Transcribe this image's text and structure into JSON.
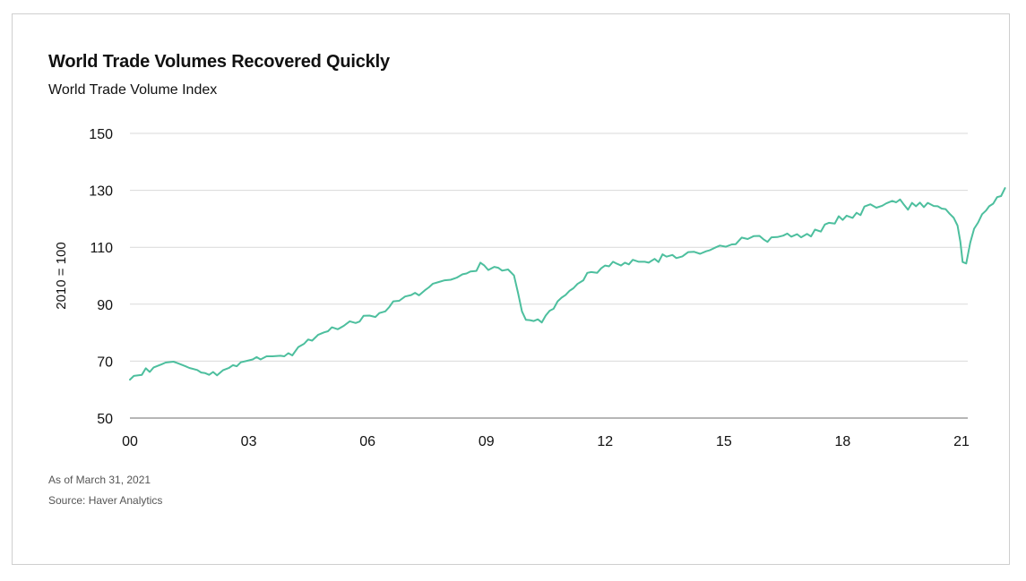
{
  "chart_data": {
    "type": "line",
    "title": "World Trade Volumes Recovered Quickly",
    "subtitle": "World Trade Volume Index",
    "xlabel": "",
    "ylabel": "2010 = 100",
    "xlim": [
      2000,
      2021.2
    ],
    "ylim": [
      50,
      150
    ],
    "yticks": [
      50,
      70,
      90,
      110,
      130,
      150
    ],
    "xticks": [
      {
        "value": 2000,
        "label": "00"
      },
      {
        "value": 2003,
        "label": "03"
      },
      {
        "value": 2006,
        "label": "06"
      },
      {
        "value": 2009,
        "label": "09"
      },
      {
        "value": 2012,
        "label": "12"
      },
      {
        "value": 2015,
        "label": "15"
      },
      {
        "value": 2018,
        "label": "18"
      },
      {
        "value": 2021,
        "label": "21"
      }
    ],
    "grid": "horizontal",
    "line_color": "#4dbf9e",
    "series": [
      {
        "values": [
          [
            2000.0,
            63.5
          ],
          [
            2000.1,
            64.8
          ],
          [
            2000.3,
            65.2
          ],
          [
            2000.4,
            67.5
          ],
          [
            2000.5,
            66.2
          ],
          [
            2000.6,
            67.8
          ],
          [
            2000.8,
            68.9
          ],
          [
            2000.9,
            69.5
          ],
          [
            2001.1,
            69.8
          ],
          [
            2001.2,
            69.3
          ],
          [
            2001.4,
            68.2
          ],
          [
            2001.5,
            67.6
          ],
          [
            2001.7,
            66.9
          ],
          [
            2001.8,
            66.0
          ],
          [
            2001.9,
            65.8
          ],
          [
            2002.0,
            65.2
          ],
          [
            2002.1,
            66.2
          ],
          [
            2002.2,
            65.0
          ],
          [
            2002.35,
            66.8
          ],
          [
            2002.5,
            67.6
          ],
          [
            2002.6,
            68.6
          ],
          [
            2002.7,
            68.2
          ],
          [
            2002.8,
            69.6
          ],
          [
            2002.95,
            70.1
          ],
          [
            2003.1,
            70.6
          ],
          [
            2003.2,
            71.4
          ],
          [
            2003.3,
            70.6
          ],
          [
            2003.45,
            71.7
          ],
          [
            2003.6,
            71.7
          ],
          [
            2003.8,
            71.9
          ],
          [
            2003.9,
            71.7
          ],
          [
            2004.0,
            72.8
          ],
          [
            2004.1,
            72.0
          ],
          [
            2004.25,
            74.9
          ],
          [
            2004.4,
            76.1
          ],
          [
            2004.5,
            77.6
          ],
          [
            2004.6,
            77.2
          ],
          [
            2004.75,
            79.2
          ],
          [
            2004.9,
            80.1
          ],
          [
            2005.0,
            80.5
          ],
          [
            2005.1,
            81.9
          ],
          [
            2005.25,
            81.2
          ],
          [
            2005.4,
            82.4
          ],
          [
            2005.55,
            84.0
          ],
          [
            2005.7,
            83.4
          ],
          [
            2005.8,
            83.9
          ],
          [
            2005.9,
            85.9
          ],
          [
            2006.05,
            86.0
          ],
          [
            2006.2,
            85.5
          ],
          [
            2006.3,
            86.9
          ],
          [
            2006.45,
            87.5
          ],
          [
            2006.55,
            89.0
          ],
          [
            2006.65,
            91.0
          ],
          [
            2006.8,
            91.2
          ],
          [
            2006.95,
            92.7
          ],
          [
            2007.1,
            93.2
          ],
          [
            2007.2,
            94.0
          ],
          [
            2007.3,
            93.1
          ],
          [
            2007.45,
            94.9
          ],
          [
            2007.55,
            95.9
          ],
          [
            2007.65,
            97.2
          ],
          [
            2007.8,
            97.8
          ],
          [
            2007.95,
            98.4
          ],
          [
            2008.1,
            98.6
          ],
          [
            2008.25,
            99.3
          ],
          [
            2008.4,
            100.5
          ],
          [
            2008.5,
            100.8
          ],
          [
            2008.6,
            101.5
          ],
          [
            2008.75,
            101.7
          ],
          [
            2008.85,
            104.6
          ],
          [
            2008.95,
            103.6
          ],
          [
            2009.05,
            102.0
          ],
          [
            2009.2,
            103.1
          ],
          [
            2009.3,
            102.8
          ],
          [
            2009.4,
            101.8
          ],
          [
            2009.55,
            102.2
          ],
          [
            2009.7,
            100.1
          ],
          [
            2009.8,
            94.0
          ],
          [
            2009.9,
            87.5
          ],
          [
            2010.0,
            84.5
          ],
          [
            2010.1,
            84.4
          ],
          [
            2010.2,
            84.1
          ],
          [
            2010.3,
            84.7
          ],
          [
            2010.4,
            83.6
          ],
          [
            2010.5,
            86.0
          ],
          [
            2010.6,
            87.7
          ],
          [
            2010.7,
            88.4
          ],
          [
            2010.8,
            91.0
          ],
          [
            2010.9,
            92.3
          ],
          [
            2011.0,
            93.2
          ],
          [
            2011.1,
            94.7
          ],
          [
            2011.2,
            95.6
          ],
          [
            2011.3,
            97.1
          ],
          [
            2011.45,
            98.4
          ],
          [
            2011.55,
            101.0
          ],
          [
            2011.65,
            101.3
          ],
          [
            2011.8,
            101.0
          ],
          [
            2011.9,
            102.6
          ],
          [
            2012.0,
            103.6
          ],
          [
            2012.1,
            103.3
          ],
          [
            2012.2,
            104.9
          ],
          [
            2012.3,
            104.2
          ],
          [
            2012.4,
            103.6
          ],
          [
            2012.5,
            104.6
          ],
          [
            2012.6,
            104.0
          ],
          [
            2012.7,
            105.6
          ],
          [
            2012.85,
            104.9
          ],
          [
            2013.0,
            104.9
          ],
          [
            2013.1,
            104.6
          ],
          [
            2013.25,
            105.9
          ],
          [
            2013.35,
            104.8
          ],
          [
            2013.45,
            107.5
          ],
          [
            2013.55,
            106.7
          ],
          [
            2013.7,
            107.3
          ],
          [
            2013.8,
            106.2
          ],
          [
            2013.95,
            106.8
          ],
          [
            2014.1,
            108.3
          ],
          [
            2014.25,
            108.4
          ],
          [
            2014.4,
            107.7
          ],
          [
            2014.55,
            108.6
          ],
          [
            2014.65,
            109.0
          ],
          [
            2014.8,
            110.0
          ],
          [
            2014.9,
            110.6
          ],
          [
            2015.05,
            110.2
          ],
          [
            2015.2,
            111.0
          ],
          [
            2015.3,
            111.1
          ],
          [
            2015.45,
            113.4
          ],
          [
            2015.6,
            112.9
          ],
          [
            2015.75,
            113.9
          ],
          [
            2015.9,
            114.0
          ],
          [
            2016.0,
            112.8
          ],
          [
            2016.1,
            111.9
          ],
          [
            2016.2,
            113.5
          ],
          [
            2016.35,
            113.6
          ],
          [
            2016.5,
            114.1
          ],
          [
            2016.6,
            114.8
          ],
          [
            2016.7,
            113.7
          ],
          [
            2016.85,
            114.6
          ],
          [
            2016.95,
            113.5
          ],
          [
            2017.1,
            114.7
          ],
          [
            2017.2,
            113.8
          ],
          [
            2017.3,
            116.2
          ],
          [
            2017.45,
            115.5
          ],
          [
            2017.55,
            118.0
          ],
          [
            2017.65,
            118.6
          ],
          [
            2017.8,
            118.3
          ],
          [
            2017.9,
            120.9
          ],
          [
            2018.0,
            119.6
          ],
          [
            2018.1,
            121.1
          ],
          [
            2018.25,
            120.3
          ],
          [
            2018.35,
            122.1
          ],
          [
            2018.45,
            121.3
          ],
          [
            2018.55,
            124.3
          ],
          [
            2018.7,
            125.1
          ],
          [
            2018.85,
            123.9
          ],
          [
            2019.0,
            124.6
          ],
          [
            2019.1,
            125.4
          ],
          [
            2019.25,
            126.3
          ],
          [
            2019.35,
            125.8
          ],
          [
            2019.45,
            126.8
          ],
          [
            2019.55,
            124.9
          ],
          [
            2019.65,
            123.2
          ],
          [
            2019.75,
            125.6
          ],
          [
            2019.85,
            124.4
          ],
          [
            2019.95,
            125.7
          ],
          [
            2020.05,
            124.1
          ],
          [
            2020.15,
            125.6
          ],
          [
            2020.3,
            124.5
          ],
          [
            2020.4,
            124.4
          ],
          [
            2020.5,
            123.6
          ],
          [
            2020.6,
            123.4
          ],
          [
            2020.7,
            121.8
          ],
          [
            2020.8,
            120.4
          ],
          [
            2020.9,
            117.6
          ],
          [
            2020.97,
            112.0
          ],
          [
            2021.03,
            104.8
          ],
          [
            2021.12,
            104.3
          ],
          [
            2021.22,
            111.5
          ],
          [
            2021.32,
            116.5
          ],
          [
            2021.42,
            118.7
          ],
          [
            2021.52,
            121.6
          ],
          [
            2021.62,
            122.9
          ],
          [
            2021.7,
            124.4
          ],
          [
            2021.8,
            125.3
          ],
          [
            2021.9,
            127.6
          ],
          [
            2022.0,
            128.0
          ],
          [
            2022.1,
            130.8
          ]
        ]
      }
    ]
  },
  "notes": {
    "as_of": "As of March 31, 2021",
    "source": "Source: Haver Analytics"
  }
}
